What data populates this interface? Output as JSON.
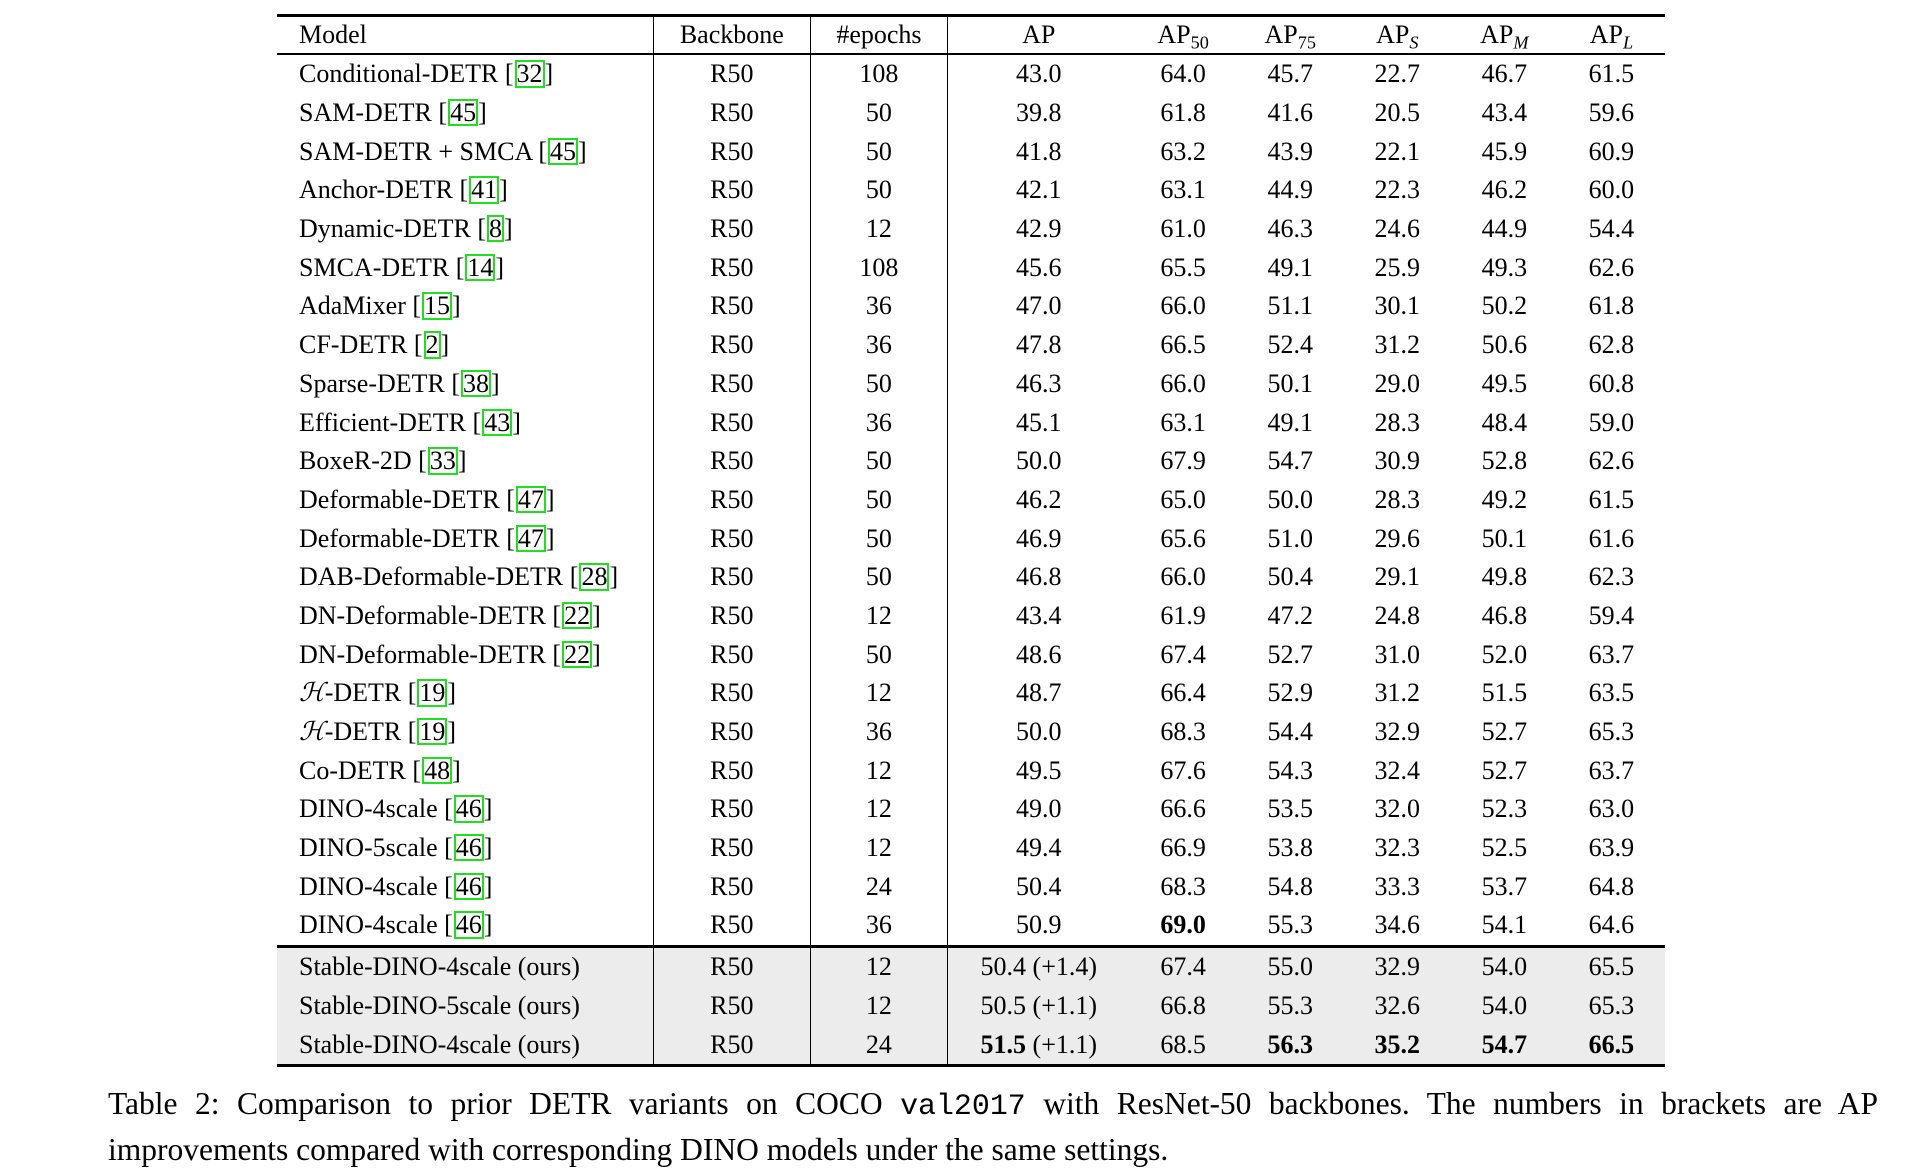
{
  "table": {
    "headers": {
      "model": "Model",
      "backbone": "Backbone",
      "epochs": "#epochs",
      "ap": "AP",
      "ap50_base": "AP",
      "ap50_sub": "50",
      "ap75_base": "AP",
      "ap75_sub": "75",
      "aps_base": "AP",
      "aps_sub": "S",
      "apm_base": "AP",
      "apm_sub": "M",
      "apl_base": "AP",
      "apl_sub": "L"
    },
    "prior_rows": [
      {
        "name": "Conditional-DETR",
        "cite": "32",
        "backbone": "R50",
        "epochs": "108",
        "ap": "43.0",
        "ap50": "64.0",
        "ap75": "45.7",
        "aps": "22.7",
        "apm": "46.7",
        "apl": "61.5"
      },
      {
        "name": "SAM-DETR",
        "cite": "45",
        "backbone": "R50",
        "epochs": "50",
        "ap": "39.8",
        "ap50": "61.8",
        "ap75": "41.6",
        "aps": "20.5",
        "apm": "43.4",
        "apl": "59.6"
      },
      {
        "name": "SAM-DETR + SMCA",
        "cite": "45",
        "backbone": "R50",
        "epochs": "50",
        "ap": "41.8",
        "ap50": "63.2",
        "ap75": "43.9",
        "aps": "22.1",
        "apm": "45.9",
        "apl": "60.9"
      },
      {
        "name": "Anchor-DETR",
        "cite": "41",
        "backbone": "R50",
        "epochs": "50",
        "ap": "42.1",
        "ap50": "63.1",
        "ap75": "44.9",
        "aps": "22.3",
        "apm": "46.2",
        "apl": "60.0"
      },
      {
        "name": "Dynamic-DETR",
        "cite": "8",
        "backbone": "R50",
        "epochs": "12",
        "ap": "42.9",
        "ap50": "61.0",
        "ap75": "46.3",
        "aps": "24.6",
        "apm": "44.9",
        "apl": "54.4"
      },
      {
        "name": "SMCA-DETR",
        "cite": "14",
        "backbone": "R50",
        "epochs": "108",
        "ap": "45.6",
        "ap50": "65.5",
        "ap75": "49.1",
        "aps": "25.9",
        "apm": "49.3",
        "apl": "62.6"
      },
      {
        "name": "AdaMixer",
        "cite": "15",
        "backbone": "R50",
        "epochs": "36",
        "ap": "47.0",
        "ap50": "66.0",
        "ap75": "51.1",
        "aps": "30.1",
        "apm": "50.2",
        "apl": "61.8"
      },
      {
        "name": "CF-DETR",
        "cite": "2",
        "backbone": "R50",
        "epochs": "36",
        "ap": "47.8",
        "ap50": "66.5",
        "ap75": "52.4",
        "aps": "31.2",
        "apm": "50.6",
        "apl": "62.8"
      },
      {
        "name": "Sparse-DETR",
        "cite": "38",
        "backbone": "R50",
        "epochs": "50",
        "ap": "46.3",
        "ap50": "66.0",
        "ap75": "50.1",
        "aps": "29.0",
        "apm": "49.5",
        "apl": "60.8"
      },
      {
        "name": "Efficient-DETR",
        "cite": "43",
        "backbone": "R50",
        "epochs": "36",
        "ap": "45.1",
        "ap50": "63.1",
        "ap75": "49.1",
        "aps": "28.3",
        "apm": "48.4",
        "apl": "59.0"
      },
      {
        "name": "BoxeR-2D",
        "cite": "33",
        "backbone": "R50",
        "epochs": "50",
        "ap": "50.0",
        "ap50": "67.9",
        "ap75": "54.7",
        "aps": "30.9",
        "apm": "52.8",
        "apl": "62.6"
      },
      {
        "name": "Deformable-DETR",
        "cite": "47",
        "backbone": "R50",
        "epochs": "50",
        "ap": "46.2",
        "ap50": "65.0",
        "ap75": "50.0",
        "aps": "28.3",
        "apm": "49.2",
        "apl": "61.5"
      },
      {
        "name": "Deformable-DETR",
        "cite": "47",
        "backbone": "R50",
        "epochs": "50",
        "ap": "46.9",
        "ap50": "65.6",
        "ap75": "51.0",
        "aps": "29.6",
        "apm": "50.1",
        "apl": "61.6"
      },
      {
        "name": "DAB-Deformable-DETR",
        "cite": "28",
        "backbone": "R50",
        "epochs": "50",
        "ap": "46.8",
        "ap50": "66.0",
        "ap75": "50.4",
        "aps": "29.1",
        "apm": "49.8",
        "apl": "62.3"
      },
      {
        "name": "DN-Deformable-DETR",
        "cite": "22",
        "backbone": "R50",
        "epochs": "12",
        "ap": "43.4",
        "ap50": "61.9",
        "ap75": "47.2",
        "aps": "24.8",
        "apm": "46.8",
        "apl": "59.4"
      },
      {
        "name": "DN-Deformable-DETR",
        "cite": "22",
        "backbone": "R50",
        "epochs": "50",
        "ap": "48.6",
        "ap50": "67.4",
        "ap75": "52.7",
        "aps": "31.0",
        "apm": "52.0",
        "apl": "63.7"
      },
      {
        "name": "-DETR",
        "prefix": "ℋ",
        "cite": "19",
        "backbone": "R50",
        "epochs": "12",
        "ap": "48.7",
        "ap50": "66.4",
        "ap75": "52.9",
        "aps": "31.2",
        "apm": "51.5",
        "apl": "63.5"
      },
      {
        "name": "-DETR",
        "prefix": "ℋ",
        "cite": "19",
        "backbone": "R50",
        "epochs": "36",
        "ap": "50.0",
        "ap50": "68.3",
        "ap75": "54.4",
        "aps": "32.9",
        "apm": "52.7",
        "apl": "65.3"
      },
      {
        "name": "Co-DETR",
        "cite": "48",
        "backbone": "R50",
        "epochs": "12",
        "ap": "49.5",
        "ap50": "67.6",
        "ap75": "54.3",
        "aps": "32.4",
        "apm": "52.7",
        "apl": "63.7"
      },
      {
        "name": "DINO-4scale",
        "cite": "46",
        "backbone": "R50",
        "epochs": "12",
        "ap": "49.0",
        "ap50": "66.6",
        "ap75": "53.5",
        "aps": "32.0",
        "apm": "52.3",
        "apl": "63.0"
      },
      {
        "name": "DINO-5scale",
        "cite": "46",
        "backbone": "R50",
        "epochs": "12",
        "ap": "49.4",
        "ap50": "66.9",
        "ap75": "53.8",
        "aps": "32.3",
        "apm": "52.5",
        "apl": "63.9"
      },
      {
        "name": "DINO-4scale",
        "cite": "46",
        "backbone": "R50",
        "epochs": "24",
        "ap": "50.4",
        "ap50": "68.3",
        "ap75": "54.8",
        "aps": "33.3",
        "apm": "53.7",
        "apl": "64.8"
      },
      {
        "name": "DINO-4scale",
        "cite": "46",
        "backbone": "R50",
        "epochs": "36",
        "ap": "50.9",
        "ap50": "69.0",
        "ap75": "55.3",
        "aps": "34.6",
        "apm": "54.1",
        "apl": "64.6",
        "bold": [
          "ap50"
        ]
      }
    ],
    "ours_rows": [
      {
        "name": "Stable-DINO-4scale (ours)",
        "backbone": "R50",
        "epochs": "12",
        "ap": "50.4",
        "ap_delta": "(+1.4)",
        "ap50": "67.4",
        "ap75": "55.0",
        "aps": "32.9",
        "apm": "54.0",
        "apl": "65.5"
      },
      {
        "name": "Stable-DINO-5scale (ours)",
        "backbone": "R50",
        "epochs": "12",
        "ap": "50.5",
        "ap_delta": "(+1.1)",
        "ap50": "66.8",
        "ap75": "55.3",
        "aps": "32.6",
        "apm": "54.0",
        "apl": "65.3"
      },
      {
        "name": "Stable-DINO-4scale (ours)",
        "backbone": "R50",
        "epochs": "24",
        "ap": "51.5",
        "ap_delta": "(+1.1)",
        "ap50": "68.5",
        "ap75": "56.3",
        "aps": "35.2",
        "apm": "54.7",
        "apl": "66.5",
        "bold": [
          "ap",
          "ap75",
          "aps",
          "apm",
          "apl"
        ]
      }
    ]
  },
  "caption": {
    "part1": "Table 2: Comparison to prior DETR variants on COCO ",
    "code": "val2017",
    "part2": " with ResNet-50 backbones. The numbers in brackets are AP improvements compared with corresponding DINO models under the same settings."
  },
  "colors": {
    "cite_box": "#1ee11e",
    "ours_shading": "#ececec"
  }
}
